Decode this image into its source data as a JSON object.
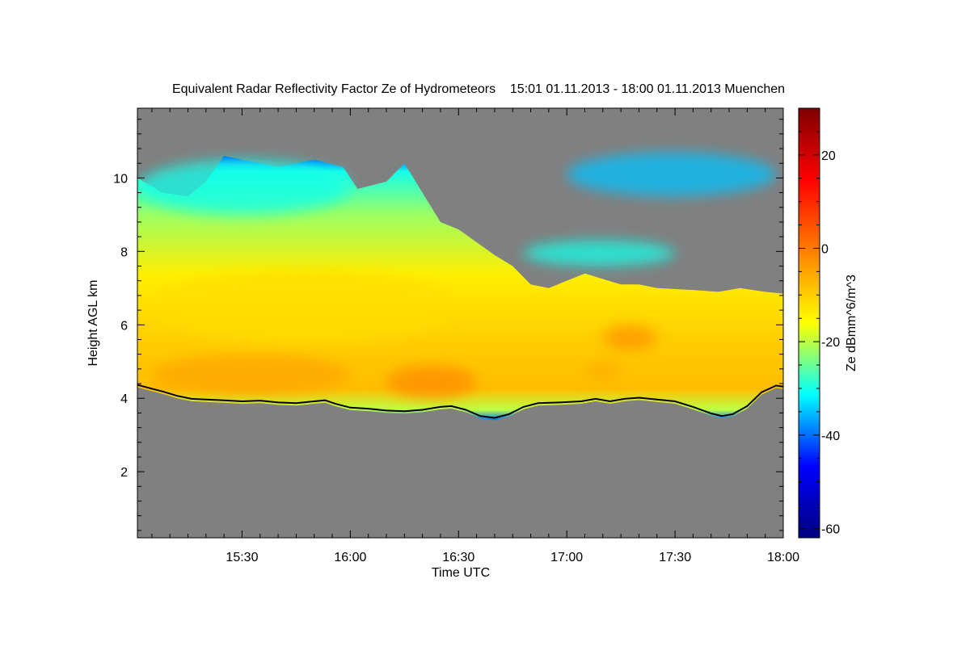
{
  "chart_data": {
    "type": "heatmap",
    "title": "Equivalent Radar Reflectivity Factor Ze of Hydrometeors    15:01 01.11.2013 - 18:00 01.11.2013 Muenchen",
    "xlabel": "Time UTC",
    "ylabel": "Height AGL km",
    "colorbar_label": "Ze dBmm^6/m^3",
    "x_tick_labels": [
      "15:30",
      "16:00",
      "16:30",
      "17:00",
      "17:30",
      "18:00"
    ],
    "x_tick_values": [
      30,
      60,
      90,
      120,
      150,
      180
    ],
    "xlim": [
      1,
      180
    ],
    "x_units": "minutes after 15:00 UTC on 01.11.2013",
    "y_tick_labels": [
      "2",
      "4",
      "6",
      "8",
      "10"
    ],
    "y_tick_values": [
      2,
      4,
      6,
      8,
      10
    ],
    "ylim": [
      0.2,
      11.9
    ],
    "colorbar_tick_labels": [
      "20",
      "0",
      "-20",
      "-40",
      "-60"
    ],
    "colorbar_tick_values": [
      20,
      0,
      -20,
      -40,
      -60
    ],
    "colorbar_range": [
      -62,
      30
    ],
    "colormap": [
      "#00007f",
      "#0000ff",
      "#00ffff",
      "#ffff00",
      "#ff8000",
      "#ff0000",
      "#7f0000"
    ],
    "no_signal_color": "#808080",
    "cloud_base_line_color": "#000000",
    "cloud_base_km": [
      [
        1,
        4.3
      ],
      [
        4,
        4.22
      ],
      [
        8,
        4.12
      ],
      [
        12,
        4.0
      ],
      [
        16,
        3.92
      ],
      [
        20,
        3.9
      ],
      [
        25,
        3.88
      ],
      [
        30,
        3.85
      ],
      [
        35,
        3.87
      ],
      [
        40,
        3.82
      ],
      [
        45,
        3.8
      ],
      [
        50,
        3.85
      ],
      [
        53,
        3.88
      ],
      [
        56,
        3.78
      ],
      [
        60,
        3.68
      ],
      [
        65,
        3.65
      ],
      [
        70,
        3.6
      ],
      [
        75,
        3.58
      ],
      [
        80,
        3.62
      ],
      [
        85,
        3.7
      ],
      [
        88,
        3.72
      ],
      [
        92,
        3.62
      ],
      [
        96,
        3.45
      ],
      [
        100,
        3.4
      ],
      [
        104,
        3.5
      ],
      [
        108,
        3.7
      ],
      [
        112,
        3.8
      ],
      [
        118,
        3.82
      ],
      [
        124,
        3.85
      ],
      [
        128,
        3.92
      ],
      [
        132,
        3.85
      ],
      [
        136,
        3.92
      ],
      [
        140,
        3.95
      ],
      [
        145,
        3.9
      ],
      [
        150,
        3.85
      ],
      [
        155,
        3.7
      ],
      [
        160,
        3.52
      ],
      [
        163,
        3.45
      ],
      [
        166,
        3.5
      ],
      [
        170,
        3.72
      ],
      [
        174,
        4.1
      ],
      [
        178,
        4.28
      ],
      [
        180,
        4.25
      ]
    ],
    "cloud_top_km": [
      [
        1,
        10.0
      ],
      [
        8,
        9.6
      ],
      [
        15,
        9.5
      ],
      [
        20,
        9.9
      ],
      [
        25,
        10.6
      ],
      [
        30,
        10.5
      ],
      [
        40,
        10.3
      ],
      [
        50,
        10.5
      ],
      [
        58,
        10.3
      ],
      [
        62,
        9.7
      ],
      [
        70,
        9.9
      ],
      [
        75,
        10.4
      ],
      [
        80,
        9.6
      ],
      [
        85,
        8.8
      ],
      [
        90,
        8.6
      ],
      [
        95,
        8.25
      ],
      [
        100,
        7.9
      ],
      [
        105,
        7.6
      ],
      [
        110,
        7.1
      ],
      [
        115,
        7.0
      ],
      [
        125,
        7.4
      ],
      [
        135,
        7.1
      ],
      [
        140,
        7.1
      ],
      [
        145,
        7.0
      ],
      [
        155,
        6.95
      ],
      [
        162,
        6.9
      ],
      [
        168,
        7.0
      ],
      [
        175,
        6.9
      ],
      [
        180,
        6.85
      ]
    ],
    "regions": [
      {
        "x": [
          70,
          95
        ],
        "y": [
          4.0,
          4.9
        ],
        "peak_dbz": -2
      },
      {
        "x": [
          5,
          60
        ],
        "y": [
          4.1,
          5.2
        ],
        "peak_dbz": -5
      },
      {
        "x": [
          130,
          145
        ],
        "y": [
          5.3,
          6.0
        ],
        "peak_dbz": -3
      },
      {
        "x": [
          125,
          135
        ],
        "y": [
          4.5,
          5.0
        ],
        "peak_dbz": -6
      },
      {
        "x": [
          5,
          90
        ],
        "y": [
          5.5,
          7.5
        ],
        "peak_dbz": -12
      },
      {
        "x": [
          1,
          60
        ],
        "y": [
          9.0,
          10.5
        ],
        "peak_dbz": -30
      },
      {
        "x": [
          120,
          178
        ],
        "y": [
          9.5,
          10.7
        ],
        "peak_dbz": -35
      },
      {
        "x": [
          108,
          150
        ],
        "y": [
          7.6,
          8.3
        ],
        "peak_dbz": -30
      }
    ]
  }
}
